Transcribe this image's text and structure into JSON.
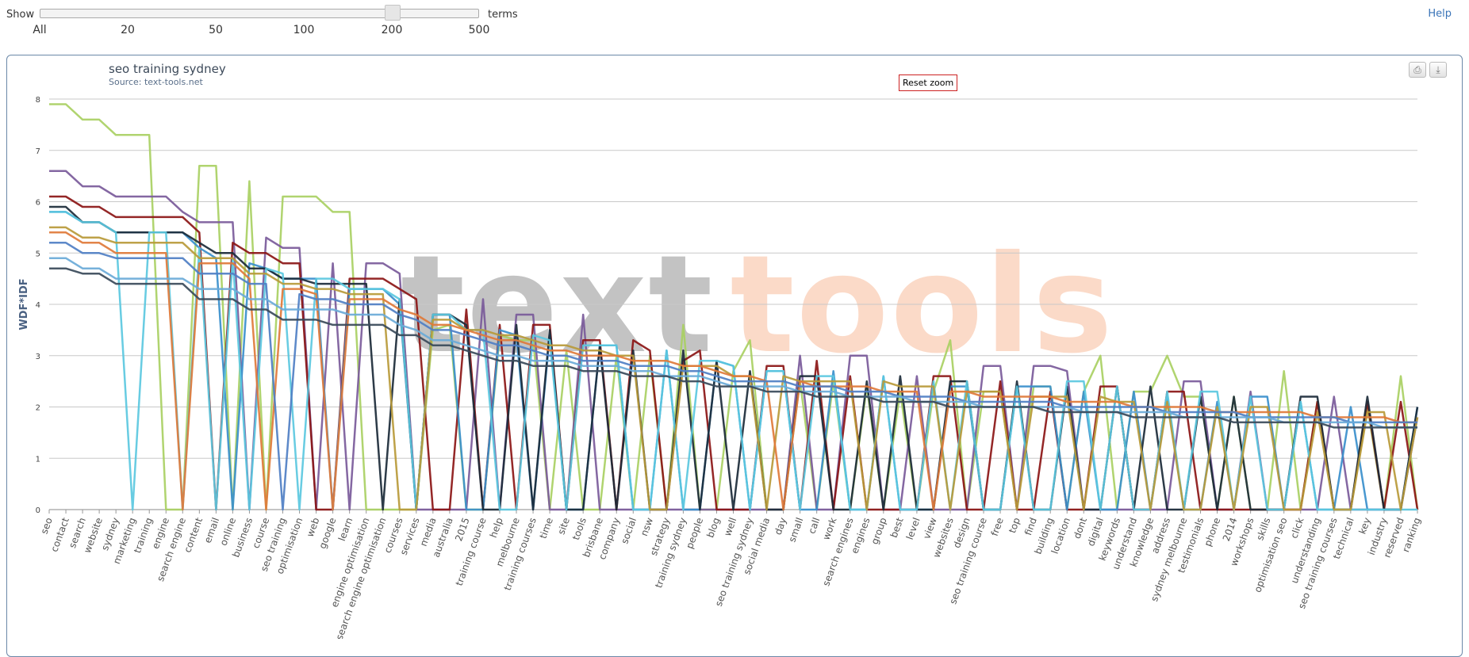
{
  "top": {
    "show_label": "Show",
    "terms_label": "terms",
    "help_label": "Help",
    "slider_ticks": [
      "All",
      "20",
      "50",
      "100",
      "200",
      "500"
    ],
    "slider_selected": "200"
  },
  "toolbar": {
    "reset_zoom": "Reset zoom"
  },
  "icons": {
    "print": "print-icon",
    "download": "download-icon"
  },
  "watermark": {
    "part1": "text",
    "part2": "tools"
  },
  "colors": {
    "axis_label": "#4a6182",
    "panel_border": "#6b88a8",
    "reset_border": "#cc2222"
  },
  "chart_data": {
    "type": "line",
    "title": "seo training sydney",
    "subtitle": "Source: text-tools.net",
    "xlabel": "",
    "ylabel": "WDF*IDF",
    "ylim": [
      0,
      8
    ],
    "yticks": [
      0,
      1,
      2,
      3,
      4,
      5,
      6,
      7,
      8
    ],
    "grid": true,
    "categories": [
      "seo",
      "contact",
      "search",
      "website",
      "sydney",
      "marketing",
      "training",
      "engine",
      "search engine",
      "content",
      "email",
      "online",
      "business",
      "course",
      "seo training",
      "optimisation",
      "web",
      "google",
      "learn",
      "engine optimisation",
      "search engine optimisation",
      "courses",
      "services",
      "media",
      "australia",
      "2015",
      "training course",
      "help",
      "melbourne",
      "training courses",
      "time",
      "site",
      "tools",
      "brisbane",
      "company",
      "social",
      "nsw",
      "strategy",
      "training sydney",
      "people",
      "blog",
      "well",
      "seo training sydney",
      "social media",
      "day",
      "small",
      "call",
      "work",
      "search engines",
      "engines",
      "group",
      "best",
      "level",
      "view",
      "websites",
      "design",
      "seo training course",
      "free",
      "top",
      "find",
      "building",
      "location",
      "dont",
      "digital",
      "keywords",
      "understand",
      "knowledge",
      "address",
      "sydney melbourne",
      "testimonials",
      "phone",
      "2014",
      "workshops",
      "skills",
      "optimisation seo",
      "click",
      "understanding",
      "seo training courses",
      "technical",
      "key",
      "industry",
      "reserved",
      "ranking"
    ],
    "series": [
      {
        "color": "#a9d063",
        "values": [
          7.9,
          7.9,
          7.6,
          7.6,
          7.3,
          7.3,
          7.3,
          0,
          0,
          6.7,
          6.7,
          0,
          6.4,
          0,
          6.1,
          6.1,
          6.1,
          5.8,
          5.8,
          0,
          0,
          0,
          0,
          3.5,
          3.6,
          0,
          0,
          3.4,
          3.3,
          3.3,
          0,
          3.1,
          0,
          0,
          3.0,
          0,
          3.0,
          0,
          3.6,
          0,
          0,
          2.7,
          3.3,
          0,
          0,
          2.5,
          0,
          2.5,
          0,
          2.4,
          0,
          2.3,
          0,
          2.3,
          3.3,
          0,
          2.3,
          2.3,
          0,
          2.4,
          2.4,
          0,
          2.3,
          3.0,
          0,
          2.3,
          2.3,
          3.0,
          2.2,
          2.2,
          0,
          2.2,
          0,
          0,
          2.7,
          0,
          2.1,
          0,
          0,
          2.0,
          0,
          2.6,
          0
        ]
      },
      {
        "color": "#7a5a9a",
        "values": [
          6.6,
          6.6,
          6.3,
          6.3,
          6.1,
          6.1,
          6.1,
          6.1,
          5.8,
          5.6,
          5.6,
          5.6,
          0,
          5.3,
          5.1,
          5.1,
          0,
          4.8,
          0,
          4.8,
          4.8,
          4.6,
          0,
          0,
          0,
          0,
          4.1,
          0,
          3.8,
          3.8,
          0,
          0,
          3.8,
          0,
          0,
          0,
          0,
          0,
          0,
          0,
          0,
          0,
          0,
          0,
          0,
          3.0,
          0,
          0,
          3.0,
          3.0,
          0,
          0,
          2.6,
          0,
          0,
          0,
          2.8,
          2.8,
          0,
          2.8,
          2.8,
          2.7,
          0,
          0,
          0,
          0,
          0,
          0,
          2.5,
          2.5,
          0,
          0,
          2.3,
          0,
          0,
          0,
          0,
          2.2,
          0,
          0,
          0,
          0,
          1.8
        ]
      },
      {
        "color": "#8b1515",
        "values": [
          6.1,
          6.1,
          5.9,
          5.9,
          5.7,
          5.7,
          5.7,
          5.7,
          5.7,
          5.4,
          0,
          5.2,
          5.0,
          5.0,
          4.8,
          4.8,
          0,
          0,
          4.5,
          4.5,
          4.5,
          4.3,
          4.1,
          0,
          0,
          3.9,
          0,
          3.6,
          0,
          3.6,
          3.6,
          0,
          3.3,
          3.3,
          0,
          3.3,
          3.1,
          0,
          2.9,
          3.1,
          0,
          0,
          0,
          2.8,
          2.8,
          0,
          2.9,
          0,
          2.6,
          0,
          0,
          0,
          0,
          2.6,
          2.6,
          0,
          0,
          2.5,
          0,
          0,
          2.3,
          0,
          0,
          2.4,
          2.4,
          0,
          0,
          2.3,
          2.3,
          0,
          0,
          0,
          0,
          0,
          0,
          0,
          2.1,
          0,
          0,
          2.1,
          0,
          2.1,
          0
        ]
      },
      {
        "color": "#3a8fcc",
        "values": [
          5.8,
          5.8,
          5.6,
          5.6,
          5.4,
          5.4,
          5.4,
          5.4,
          5.4,
          5.1,
          4.9,
          0,
          4.8,
          4.7,
          4.5,
          4.5,
          4.5,
          0,
          4.3,
          4.3,
          4.3,
          4.0,
          0,
          3.8,
          3.8,
          0,
          0,
          3.5,
          3.4,
          0,
          3.4,
          0,
          0,
          3.2,
          3.2,
          0,
          0,
          3.1,
          0,
          0,
          2.9,
          2.8,
          0,
          2.7,
          2.7,
          0,
          0,
          2.7,
          0,
          0,
          2.6,
          0,
          0,
          0,
          2.4,
          2.4,
          0,
          0,
          2.4,
          2.4,
          2.4,
          0,
          2.3,
          0,
          0,
          2.3,
          0,
          2.2,
          0,
          0,
          2.1,
          0,
          2.2,
          2.2,
          0,
          2.1,
          0,
          0,
          2.0,
          0,
          0,
          0,
          2.0
        ]
      },
      {
        "color": "#1b2a38",
        "values": [
          5.9,
          5.9,
          5.6,
          5.6,
          5.4,
          5.4,
          5.4,
          5.4,
          5.4,
          5.2,
          5.0,
          5.0,
          4.7,
          4.7,
          4.5,
          4.5,
          4.4,
          4.4,
          4.4,
          4.4,
          0,
          4.1,
          0,
          3.8,
          3.8,
          3.6,
          0,
          0,
          3.6,
          0,
          3.5,
          0,
          0,
          3.2,
          0,
          3.1,
          0,
          0,
          3.1,
          0,
          2.9,
          0,
          2.7,
          0,
          0,
          2.6,
          2.6,
          0,
          0,
          2.5,
          0,
          2.6,
          0,
          0,
          2.5,
          2.5,
          0,
          0,
          2.5,
          0,
          0,
          2.4,
          0,
          0,
          2.4,
          0,
          2.4,
          0,
          0,
          2.2,
          0,
          2.2,
          0,
          0,
          0,
          2.2,
          2.2,
          0,
          0,
          2.2,
          0,
          0,
          2.0
        ]
      },
      {
        "color": "#5bc8e0",
        "values": [
          5.8,
          5.8,
          5.6,
          5.6,
          5.4,
          0,
          5.4,
          5.4,
          0,
          5.1,
          0,
          4.9,
          0,
          4.7,
          4.6,
          0,
          4.5,
          4.5,
          4.3,
          4.3,
          4.3,
          4.1,
          0,
          3.8,
          3.8,
          3.5,
          3.5,
          0,
          0,
          3.4,
          3.3,
          0,
          3.2,
          3.2,
          3.2,
          0,
          0,
          3.1,
          0,
          2.9,
          2.9,
          2.8,
          0,
          2.7,
          2.7,
          0,
          2.6,
          2.6,
          0,
          0,
          2.6,
          0,
          0,
          2.5,
          0,
          2.5,
          0,
          0,
          2.4,
          0,
          0,
          2.5,
          2.5,
          0,
          2.4,
          0,
          0,
          2.3,
          0,
          2.3,
          2.3,
          0,
          2.2,
          0,
          0,
          2.1,
          0,
          0,
          0,
          0,
          0,
          0,
          0
        ]
      },
      {
        "color": "#b89a3a",
        "values": [
          5.5,
          5.5,
          5.3,
          5.3,
          5.2,
          5.2,
          5.2,
          5.2,
          5.2,
          4.9,
          4.9,
          4.9,
          4.6,
          4.6,
          4.4,
          4.4,
          4.3,
          4.3,
          4.2,
          4.2,
          4.2,
          0,
          0,
          3.7,
          3.7,
          3.5,
          3.5,
          3.4,
          3.4,
          3.3,
          3.2,
          3.2,
          3.1,
          3.1,
          3.0,
          3.0,
          0,
          0,
          2.8,
          2.8,
          2.8,
          2.6,
          2.6,
          0,
          2.6,
          2.5,
          2.5,
          2.5,
          2.5,
          0,
          2.5,
          2.4,
          2.4,
          2.4,
          0,
          2.3,
          2.3,
          2.3,
          0,
          2.2,
          2.2,
          2.2,
          0,
          2.2,
          2.1,
          2.1,
          0,
          2.1,
          0,
          0,
          2.0,
          0,
          2.0,
          2.0,
          0,
          0,
          1.9,
          0,
          0,
          1.9,
          1.9,
          0,
          1.8
        ]
      },
      {
        "color": "#e07a3a",
        "values": [
          5.4,
          5.4,
          5.2,
          5.2,
          5.0,
          5.0,
          5.0,
          5.0,
          0,
          4.8,
          4.8,
          4.8,
          4.5,
          0,
          4.3,
          4.3,
          4.2,
          0,
          4.1,
          4.1,
          4.1,
          3.9,
          3.8,
          3.6,
          3.6,
          3.5,
          3.4,
          3.3,
          3.3,
          3.2,
          3.1,
          3.1,
          3.0,
          3.0,
          3.0,
          2.9,
          2.9,
          2.9,
          2.8,
          2.8,
          2.7,
          2.6,
          2.6,
          2.5,
          0,
          2.5,
          2.4,
          2.4,
          2.4,
          2.4,
          2.3,
          2.3,
          2.3,
          0,
          2.3,
          2.3,
          2.2,
          2.2,
          2.2,
          2.2,
          2.2,
          2.1,
          2.1,
          2.1,
          2.1,
          2.0,
          2.0,
          2.0,
          2.0,
          2.0,
          1.9,
          1.9,
          1.9,
          1.9,
          1.9,
          1.9,
          1.8,
          1.8,
          1.8,
          1.8,
          1.8,
          1.7,
          1.7
        ]
      },
      {
        "color": "#4f7fc4",
        "values": [
          5.2,
          5.2,
          5.0,
          5.0,
          4.9,
          4.9,
          4.9,
          4.9,
          4.9,
          4.6,
          4.6,
          4.6,
          4.4,
          4.4,
          0,
          4.2,
          4.1,
          4.1,
          4.0,
          4.0,
          4.0,
          3.8,
          3.7,
          3.5,
          3.5,
          3.4,
          3.3,
          3.2,
          3.2,
          3.1,
          3.0,
          3.0,
          2.9,
          2.9,
          2.9,
          2.8,
          2.8,
          2.8,
          2.7,
          2.7,
          2.6,
          2.5,
          2.5,
          2.5,
          2.5,
          2.4,
          2.4,
          2.4,
          2.3,
          2.3,
          2.3,
          2.2,
          2.2,
          2.2,
          2.2,
          2.1,
          2.1,
          2.1,
          2.1,
          2.1,
          2.1,
          2.0,
          2.0,
          2.0,
          2.0,
          2.0,
          2.0,
          1.9,
          1.9,
          1.9,
          1.9,
          1.9,
          1.8,
          1.8,
          1.8,
          1.8,
          1.8,
          1.8,
          1.7,
          1.7,
          1.7,
          1.7,
          1.7
        ]
      },
      {
        "color": "#6aaad8",
        "values": [
          4.9,
          4.9,
          4.7,
          4.7,
          4.5,
          4.5,
          4.5,
          4.5,
          4.5,
          4.3,
          4.3,
          4.3,
          4.1,
          4.1,
          3.9,
          3.9,
          3.9,
          3.9,
          3.8,
          3.8,
          3.8,
          3.6,
          3.5,
          3.3,
          3.3,
          3.2,
          3.1,
          3.0,
          3.0,
          2.9,
          2.9,
          2.9,
          2.8,
          2.8,
          2.8,
          2.7,
          2.7,
          2.6,
          2.6,
          2.6,
          2.5,
          2.4,
          2.4,
          2.4,
          2.4,
          2.3,
          2.3,
          2.3,
          2.2,
          2.2,
          2.2,
          2.2,
          2.1,
          2.1,
          2.1,
          2.1,
          2.0,
          2.0,
          2.0,
          2.0,
          2.0,
          2.0,
          1.9,
          1.9,
          1.9,
          1.9,
          1.9,
          1.9,
          1.8,
          1.8,
          1.8,
          1.8,
          1.8,
          1.8,
          1.7,
          1.7,
          1.7,
          1.7,
          1.7,
          1.7,
          1.6,
          1.6,
          1.6
        ]
      },
      {
        "color": "#3a4a5a",
        "values": [
          4.7,
          4.7,
          4.6,
          4.6,
          4.4,
          4.4,
          4.4,
          4.4,
          4.4,
          4.1,
          4.1,
          4.1,
          3.9,
          3.9,
          3.7,
          3.7,
          3.7,
          3.6,
          3.6,
          3.6,
          3.6,
          3.4,
          3.4,
          3.2,
          3.2,
          3.1,
          3.0,
          2.9,
          2.9,
          2.8,
          2.8,
          2.8,
          2.7,
          2.7,
          2.7,
          2.6,
          2.6,
          2.6,
          2.5,
          2.5,
          2.4,
          2.4,
          2.4,
          2.3,
          2.3,
          2.3,
          2.2,
          2.2,
          2.2,
          2.2,
          2.1,
          2.1,
          2.1,
          2.1,
          2.0,
          2.0,
          2.0,
          2.0,
          2.0,
          2.0,
          1.9,
          1.9,
          1.9,
          1.9,
          1.9,
          1.8,
          1.8,
          1.8,
          1.8,
          1.8,
          1.8,
          1.7,
          1.7,
          1.7,
          1.7,
          1.7,
          1.7,
          1.6,
          1.6,
          1.6,
          1.6,
          1.6,
          1.6
        ]
      }
    ]
  }
}
